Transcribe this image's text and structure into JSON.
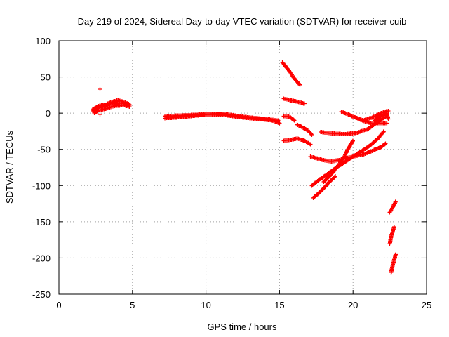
{
  "chart_data": {
    "type": "scatter",
    "title": "Day 219 of 2024, Sidereal Day-to-day VTEC variation (SDTVAR) for receiver cuib",
    "xlabel": "GPS time / hours",
    "ylabel": "SDTVAR / TECUs",
    "xlim": [
      0,
      25
    ],
    "ylim": [
      -250,
      100
    ],
    "xticks": [
      0,
      5,
      10,
      15,
      20,
      25
    ],
    "yticks": [
      100,
      50,
      0,
      -50,
      -100,
      -150,
      -200,
      -250
    ],
    "grid": true,
    "marker": "+",
    "color": "#ff0000",
    "segments": [
      [
        [
          2.3,
          5
        ],
        [
          2.7,
          10
        ],
        [
          3.2,
          12
        ],
        [
          3.7,
          16
        ],
        [
          4.0,
          18
        ],
        [
          4.5,
          15
        ],
        [
          4.8,
          12
        ]
      ],
      [
        [
          2.3,
          3
        ],
        [
          2.6,
          8
        ],
        [
          3.0,
          10
        ],
        [
          3.5,
          13
        ],
        [
          4.2,
          14
        ],
        [
          4.8,
          11
        ]
      ],
      [
        [
          2.4,
          0
        ],
        [
          2.7,
          4
        ],
        [
          3.2,
          6
        ],
        [
          3.8,
          10
        ],
        [
          4.4,
          11
        ],
        [
          4.8,
          9
        ]
      ],
      [
        [
          2.8,
          33
        ]
      ],
      [
        [
          2.8,
          -2
        ]
      ],
      [
        [
          7.2,
          -7
        ],
        [
          8.0,
          -6
        ],
        [
          9.0,
          -4
        ],
        [
          10.0,
          -2
        ],
        [
          11.0,
          -2
        ],
        [
          11.8,
          -4
        ],
        [
          12.5,
          -6
        ],
        [
          13.5,
          -8
        ],
        [
          14.5,
          -10
        ],
        [
          15.0,
          -14
        ]
      ],
      [
        [
          7.2,
          -4
        ],
        [
          8.5,
          -3
        ],
        [
          9.5,
          -2
        ],
        [
          10.5,
          -1
        ],
        [
          11.3,
          -1
        ],
        [
          12.2,
          -4
        ],
        [
          13.0,
          -6
        ],
        [
          14.0,
          -8
        ],
        [
          14.9,
          -10
        ]
      ],
      [
        [
          15.2,
          70
        ],
        [
          15.6,
          60
        ],
        [
          16.0,
          48
        ],
        [
          16.4,
          39
        ]
      ],
      [
        [
          15.3,
          20
        ],
        [
          15.7,
          18
        ],
        [
          16.2,
          16
        ],
        [
          16.7,
          13
        ]
      ],
      [
        [
          15.3,
          -4
        ],
        [
          15.7,
          -5
        ],
        [
          16.0,
          -10
        ]
      ],
      [
        [
          15.3,
          -38
        ],
        [
          15.7,
          -37
        ],
        [
          16.2,
          -35
        ],
        [
          16.7,
          -38
        ],
        [
          17.1,
          -43
        ]
      ],
      [
        [
          16.2,
          -16
        ],
        [
          16.6,
          -20
        ],
        [
          17.0,
          -25
        ],
        [
          17.2,
          -30
        ]
      ],
      [
        [
          17.1,
          -60
        ],
        [
          17.8,
          -64
        ],
        [
          18.5,
          -67
        ],
        [
          19.2,
          -64
        ],
        [
          20.0,
          -60
        ],
        [
          20.7,
          -57
        ],
        [
          21.3,
          -52
        ],
        [
          21.9,
          -47
        ],
        [
          22.2,
          -42
        ]
      ],
      [
        [
          17.2,
          -100
        ],
        [
          17.7,
          -92
        ],
        [
          18.2,
          -85
        ],
        [
          18.8,
          -76
        ],
        [
          19.4,
          -68
        ],
        [
          20.0,
          -60
        ],
        [
          20.6,
          -52
        ],
        [
          21.2,
          -44
        ],
        [
          21.7,
          -35
        ],
        [
          22.1,
          -25
        ]
      ],
      [
        [
          17.3,
          -117
        ],
        [
          17.8,
          -108
        ],
        [
          18.3,
          -97
        ],
        [
          18.8,
          -87
        ]
      ],
      [
        [
          18.0,
          -95
        ],
        [
          18.5,
          -85
        ],
        [
          19.0,
          -72
        ],
        [
          19.4,
          -60
        ],
        [
          19.7,
          -48
        ],
        [
          20.0,
          -38
        ]
      ],
      [
        [
          17.8,
          -26
        ],
        [
          18.5,
          -28
        ],
        [
          19.5,
          -29
        ],
        [
          20.3,
          -27
        ],
        [
          21.0,
          -22
        ],
        [
          21.7,
          -12
        ],
        [
          22.2,
          -5
        ],
        [
          22.3,
          0
        ]
      ],
      [
        [
          19.2,
          2
        ],
        [
          19.8,
          -3
        ],
        [
          20.5,
          -9
        ],
        [
          21.2,
          -14
        ],
        [
          21.9,
          -14
        ],
        [
          22.3,
          -14
        ]
      ],
      [
        [
          20.0,
          -5
        ],
        [
          20.7,
          -10
        ],
        [
          21.3,
          -6
        ],
        [
          21.8,
          -1
        ],
        [
          22.2,
          2
        ],
        [
          22.4,
          3
        ]
      ],
      [
        [
          21.5,
          -10
        ],
        [
          21.8,
          -5
        ],
        [
          22.0,
          -2
        ],
        [
          22.3,
          -1
        ],
        [
          22.4,
          -8
        ]
      ],
      [
        [
          22.5,
          -137
        ],
        [
          22.7,
          -130
        ],
        [
          22.9,
          -122
        ]
      ],
      [
        [
          22.5,
          -180
        ],
        [
          22.6,
          -170
        ],
        [
          22.8,
          -157
        ]
      ],
      [
        [
          22.6,
          -220
        ],
        [
          22.7,
          -210
        ],
        [
          22.9,
          -195
        ]
      ]
    ]
  }
}
